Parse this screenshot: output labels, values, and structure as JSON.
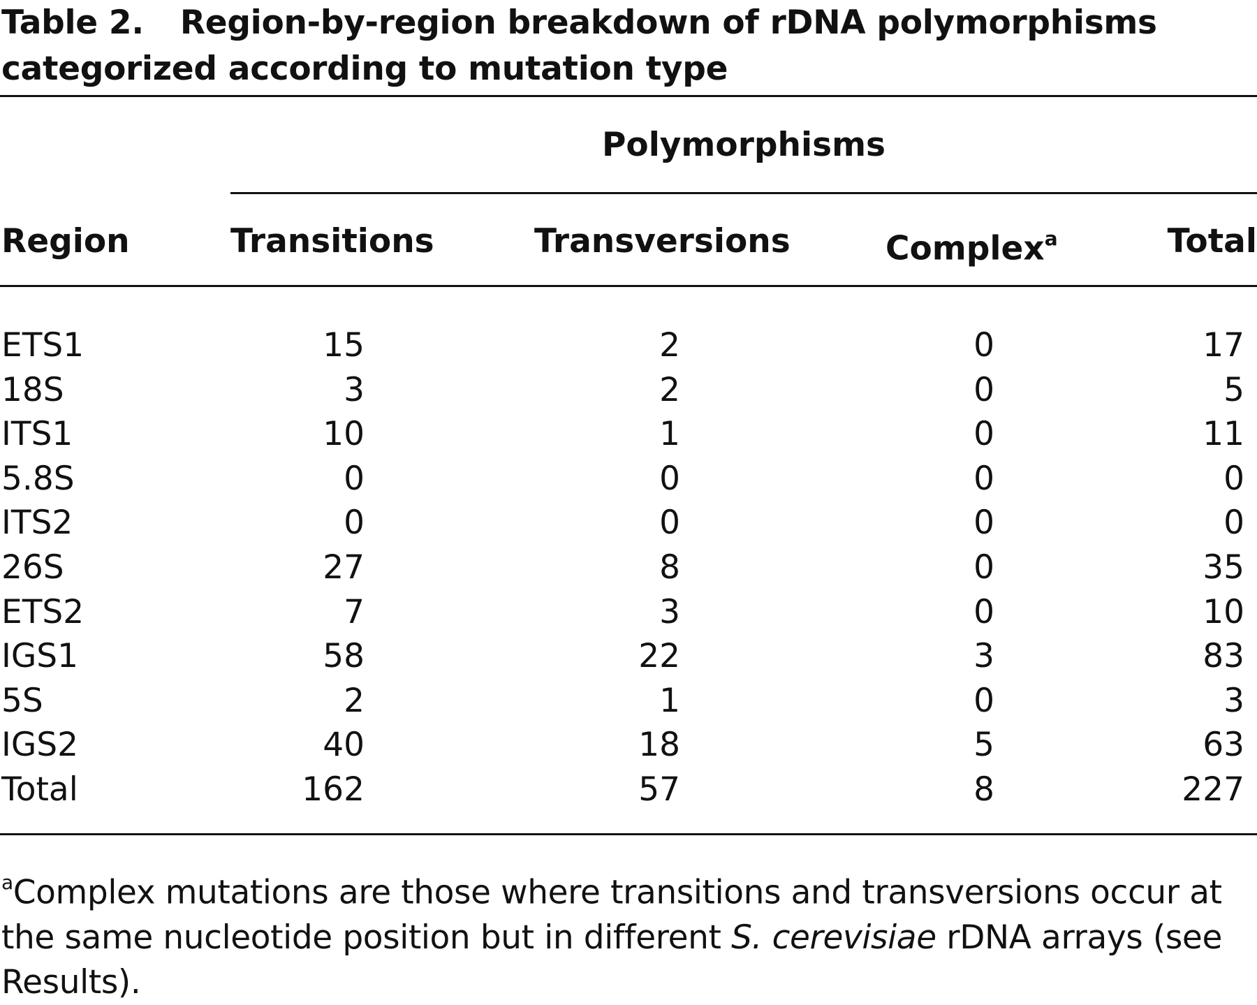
{
  "caption": {
    "label": "Table 2.",
    "title": "Region-by-region breakdown of rDNA polymorphisms categorized according to mutation type"
  },
  "table": {
    "group_header": "Polymorphisms",
    "columns": {
      "region": "Region",
      "transitions": "Transitions",
      "transversions": "Transversions",
      "complex": "Complex",
      "complex_marker": "a",
      "total": "Total"
    },
    "rows": [
      {
        "region": "ETS1",
        "transitions": "15",
        "transversions": "2",
        "complex": "0",
        "total": "17"
      },
      {
        "region": "18S",
        "transitions": "3",
        "transversions": "2",
        "complex": "0",
        "total": "5"
      },
      {
        "region": "ITS1",
        "transitions": "10",
        "transversions": "1",
        "complex": "0",
        "total": "11"
      },
      {
        "region": "5.8S",
        "transitions": "0",
        "transversions": "0",
        "complex": "0",
        "total": "0"
      },
      {
        "region": "ITS2",
        "transitions": "0",
        "transversions": "0",
        "complex": "0",
        "total": "0"
      },
      {
        "region": "26S",
        "transitions": "27",
        "transversions": "8",
        "complex": "0",
        "total": "35"
      },
      {
        "region": "ETS2",
        "transitions": "7",
        "transversions": "3",
        "complex": "0",
        "total": "10"
      },
      {
        "region": "IGS1",
        "transitions": "58",
        "transversions": "22",
        "complex": "3",
        "total": "83"
      },
      {
        "region": "5S",
        "transitions": "2",
        "transversions": "1",
        "complex": "0",
        "total": "3"
      },
      {
        "region": "IGS2",
        "transitions": "40",
        "transversions": "18",
        "complex": "5",
        "total": "63"
      },
      {
        "region": "Total",
        "transitions": "162",
        "transversions": "57",
        "complex": "8",
        "total": "227"
      }
    ]
  },
  "footnote": {
    "marker": "a",
    "text_before": "Complex mutations are those where transitions and transversions occur at the same nucleotide position but in different ",
    "species": "S. cerevisiae",
    "text_after": " rDNA arrays (see Results)."
  }
}
